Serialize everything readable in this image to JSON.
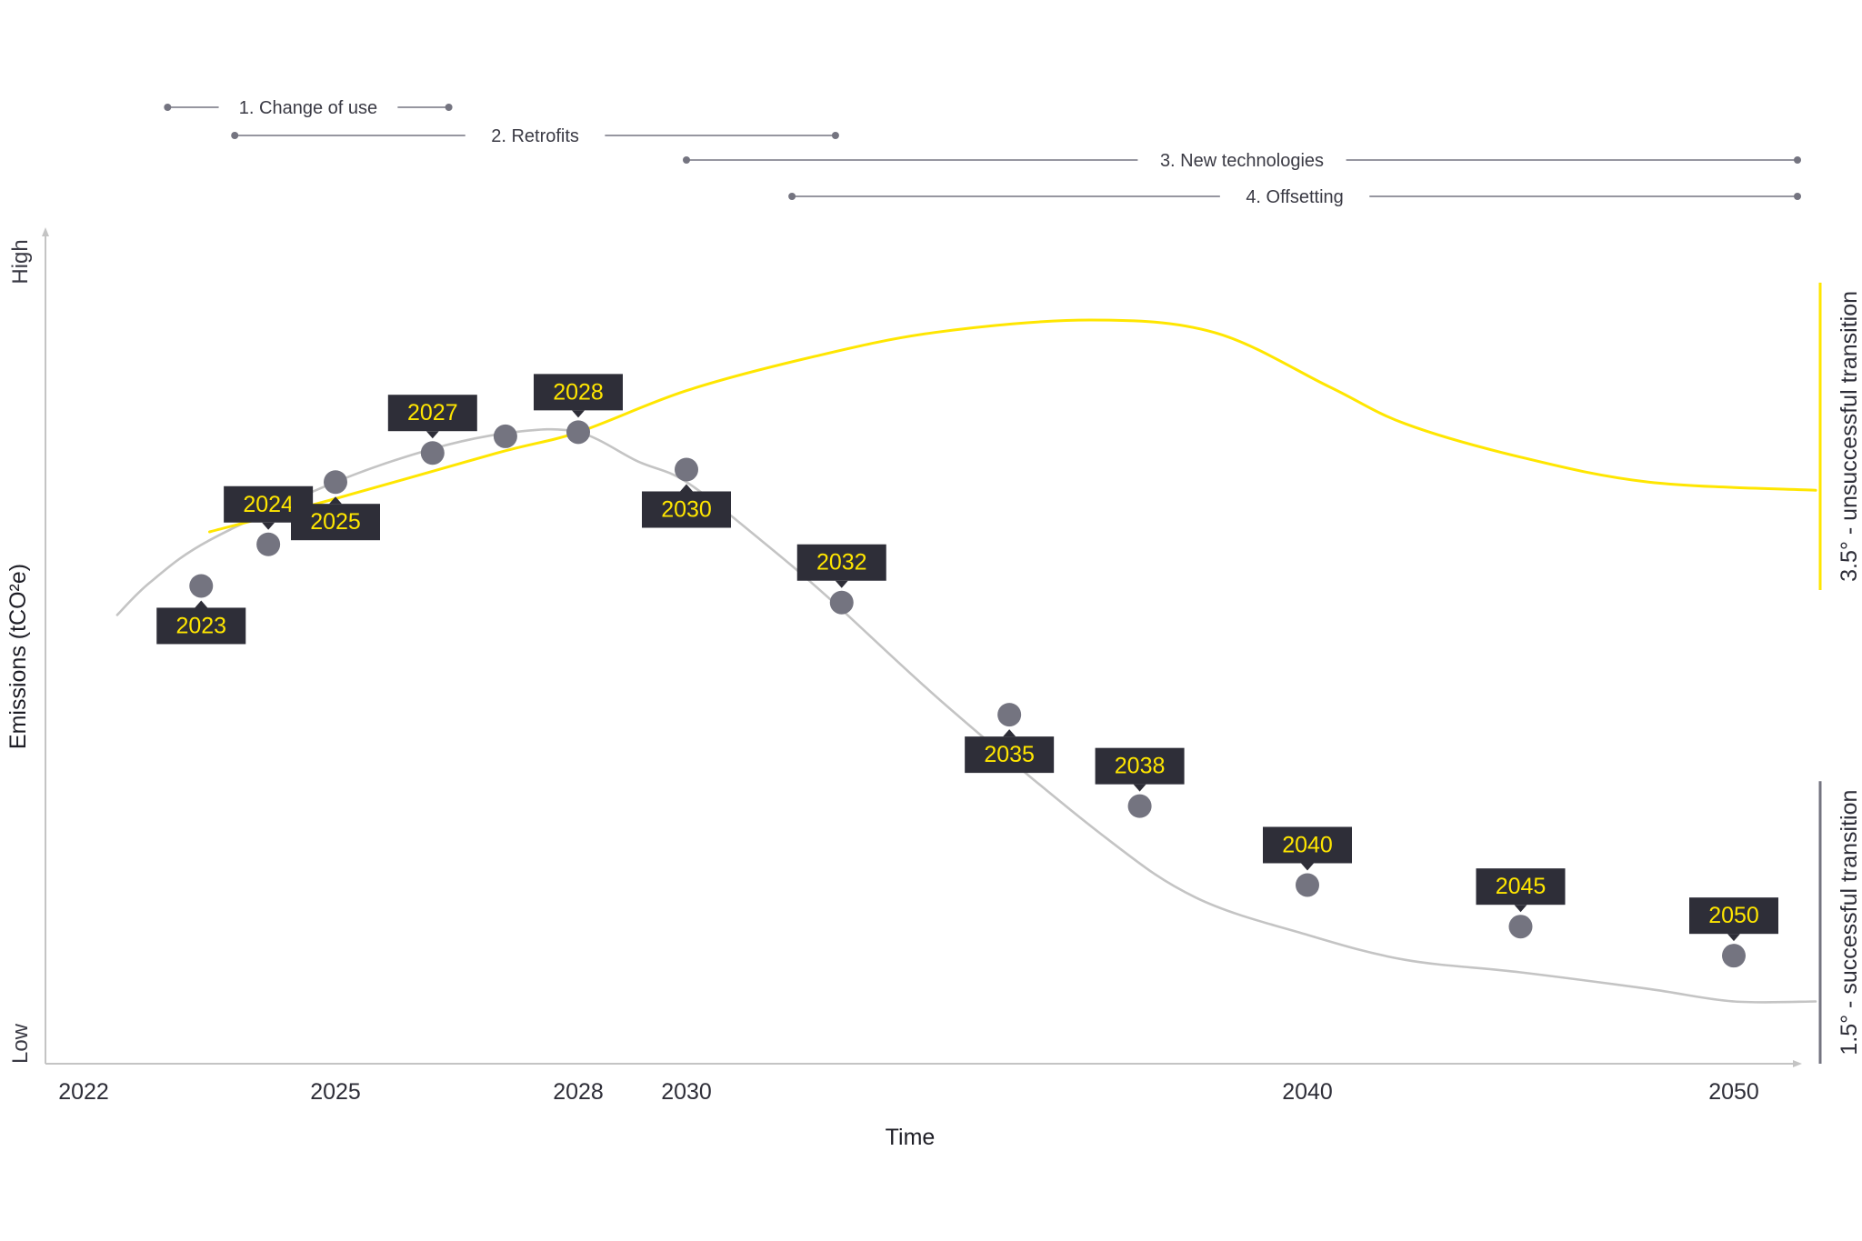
{
  "colors": {
    "actual_line": "#c4c4c4",
    "scenario_line": "#ffe600",
    "marker": "#747480",
    "callout_bg": "#2e2e38",
    "callout_text": "#ffe600",
    "axis": "#c4c4c4",
    "phase_line": "#747480",
    "band_success": "#747480",
    "band_fail": "#ffe600"
  },
  "chart_data": {
    "type": "line",
    "title": "",
    "xlabel": "Time",
    "ylabel": "Emissions (tCO²e)",
    "y_high_label": "High",
    "y_low_label": "Low",
    "x_ticks": [
      "2022",
      "2025",
      "2028",
      "2030",
      "2040",
      "2050"
    ],
    "xlim": [
      2022,
      2050.9
    ],
    "ylim": [
      0,
      100
    ],
    "series": [
      {
        "key": "successful",
        "points": [
          {
            "x": 2022.4,
            "y": 54
          },
          {
            "x": 2022.8,
            "y": 58
          },
          {
            "x": 2023.5,
            "y": 63
          },
          {
            "x": 2025.0,
            "y": 70
          },
          {
            "x": 2026.2,
            "y": 74
          },
          {
            "x": 2027.2,
            "y": 76
          },
          {
            "x": 2028.0,
            "y": 76
          },
          {
            "x": 2029.1,
            "y": 72.5
          },
          {
            "x": 2030.0,
            "y": 70
          },
          {
            "x": 2031.2,
            "y": 63
          },
          {
            "x": 2032.3,
            "y": 56
          },
          {
            "x": 2034.2,
            "y": 43
          },
          {
            "x": 2036.7,
            "y": 27.5
          },
          {
            "x": 2038.2,
            "y": 20
          },
          {
            "x": 2040.0,
            "y": 15.5
          },
          {
            "x": 2042.3,
            "y": 12.5
          },
          {
            "x": 2045.0,
            "y": 11
          },
          {
            "x": 2048.0,
            "y": 9
          },
          {
            "x": 2050.0,
            "y": 7.5
          },
          {
            "x": 2050.9,
            "y": 7.5
          }
        ]
      },
      {
        "key": "unsuccessful",
        "points": [
          {
            "x": 2023.5,
            "y": 64
          },
          {
            "x": 2025.0,
            "y": 68
          },
          {
            "x": 2027.0,
            "y": 73.5
          },
          {
            "x": 2028.0,
            "y": 76
          },
          {
            "x": 2030.0,
            "y": 81
          },
          {
            "x": 2032.0,
            "y": 85
          },
          {
            "x": 2034.0,
            "y": 88
          },
          {
            "x": 2036.5,
            "y": 89.5
          },
          {
            "x": 2038.5,
            "y": 88
          },
          {
            "x": 2040.5,
            "y": 81.5
          },
          {
            "x": 2042.3,
            "y": 77
          },
          {
            "x": 2045.0,
            "y": 73
          },
          {
            "x": 2048.0,
            "y": 70
          },
          {
            "x": 2050.9,
            "y": 69
          }
        ]
      }
    ],
    "milestones": [
      {
        "label": "2023",
        "x": 2023.4,
        "y": 57.5,
        "callout": "below"
      },
      {
        "label": "2024",
        "x": 2024.2,
        "y": 62.5,
        "callout": "above"
      },
      {
        "label": "2025",
        "x": 2025.0,
        "y": 70,
        "callout": "below"
      },
      {
        "label": "2027",
        "x": 2026.2,
        "y": 73.5,
        "callout": "above"
      },
      {
        "label": "2028",
        "x": 2028.0,
        "y": 76,
        "callout": "above"
      },
      {
        "x": 2027.1,
        "y": 75.5
      },
      {
        "label": "2030",
        "x": 2030.0,
        "y": 71.5,
        "callout": "below"
      },
      {
        "label": "2032",
        "x": 2032.5,
        "y": 55.5,
        "callout": "above"
      },
      {
        "label": "2035",
        "x": 2035.2,
        "y": 42,
        "callout": "below"
      },
      {
        "label": "2038",
        "x": 2037.3,
        "y": 31,
        "callout": "above"
      },
      {
        "label": "2040",
        "x": 2040.0,
        "y": 21.5,
        "callout": "above"
      },
      {
        "label": "2045",
        "x": 2045.0,
        "y": 16.5,
        "callout": "above"
      },
      {
        "label": "2050",
        "x": 2050.0,
        "y": 13,
        "callout": "above"
      }
    ],
    "phases": [
      {
        "label": "1. Change of use",
        "start": 2023.0,
        "end": 2026.4
      },
      {
        "label": "2. Retrofits",
        "start": 2023.8,
        "end": 2032.4
      },
      {
        "label": "3. New technologies",
        "start": 2030.0,
        "end": 2050.7
      },
      {
        "label": "4. Offsetting",
        "start": 2031.7,
        "end": 2050.7
      }
    ],
    "outcomes": [
      {
        "key": "fail",
        "label": "3.5° - unsuccessful transition",
        "y_from": 57,
        "y_to": 94
      },
      {
        "key": "success",
        "label": "1.5° - successful transition",
        "y_from": 0,
        "y_to": 34
      }
    ]
  }
}
